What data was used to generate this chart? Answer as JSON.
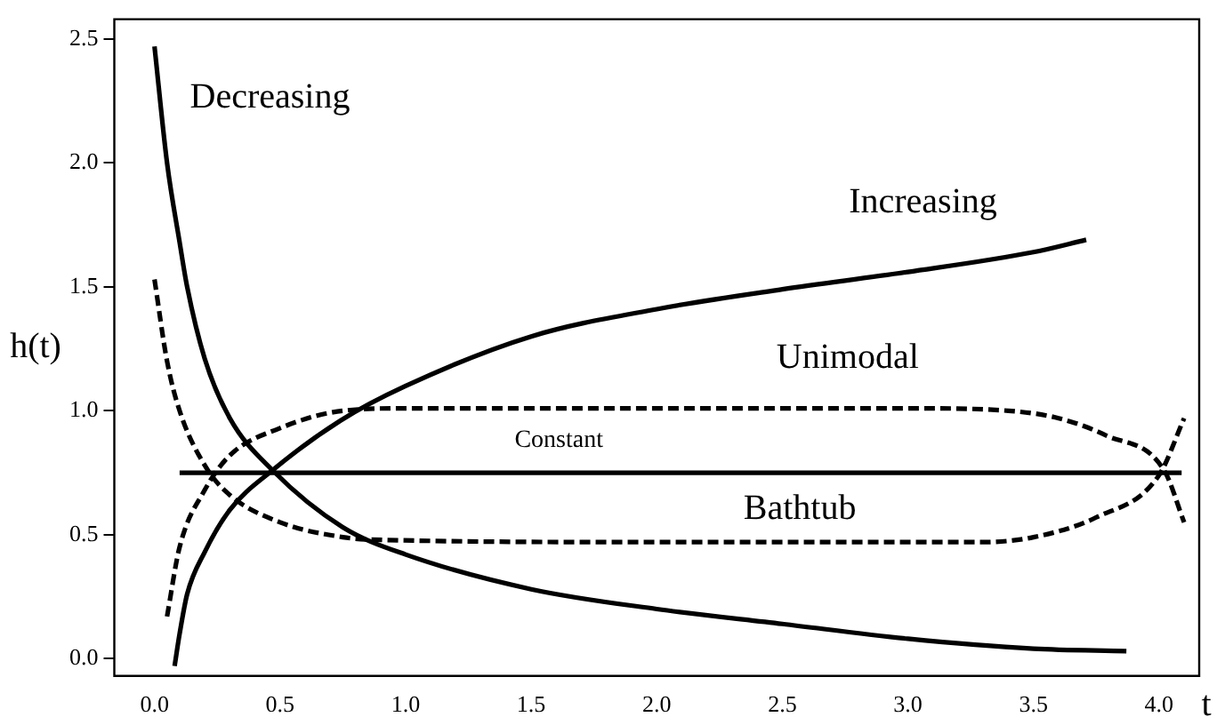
{
  "chart_data": {
    "type": "line",
    "xlabel": "t",
    "ylabel": "h(t)",
    "xlim": [
      -0.16,
      4.16
    ],
    "ylim": [
      -0.07,
      2.58
    ],
    "xticks": [
      {
        "value": 0,
        "label": "0.0"
      },
      0.5,
      {
        "value": 1,
        "label": "1.0"
      },
      1.5,
      {
        "value": 2,
        "label": "2.0"
      },
      2.5,
      {
        "value": 3,
        "label": "3.0"
      },
      3.5,
      {
        "value": 4,
        "label": "4.0"
      }
    ],
    "yticks": [
      {
        "value": 0,
        "label": "0.0"
      },
      0.5,
      {
        "value": 1,
        "label": "1.0"
      },
      1.5,
      {
        "value": 2,
        "label": "2.0"
      },
      2.5
    ],
    "grid": false,
    "legend": false,
    "marker": "none",
    "series": [
      {
        "name": "Decreasing",
        "color": "#000000",
        "line_style": "solid",
        "x": [
          0.0,
          0.05,
          0.1,
          0.13,
          0.2,
          0.3,
          0.47,
          0.75,
          1.0,
          1.5,
          2.0,
          2.5,
          3.0,
          3.5,
          3.87
        ],
        "values": [
          2.47,
          2.0,
          1.68,
          1.5,
          1.21,
          0.97,
          0.76,
          0.53,
          0.42,
          0.28,
          0.2,
          0.14,
          0.08,
          0.04,
          0.03
        ]
      },
      {
        "name": "Increasing",
        "color": "#000000",
        "line_style": "solid",
        "x": [
          0.08,
          0.1,
          0.13,
          0.2,
          0.3,
          0.47,
          0.74,
          1.0,
          1.5,
          2.0,
          2.5,
          3.0,
          3.5,
          3.71
        ],
        "values": [
          -0.03,
          0.1,
          0.26,
          0.43,
          0.6,
          0.76,
          0.96,
          1.1,
          1.3,
          1.41,
          1.49,
          1.56,
          1.64,
          1.69
        ]
      },
      {
        "name": "Unimodal",
        "color": "#000000",
        "line_style": "dashed",
        "x": [
          0.05,
          0.1,
          0.2,
          0.3,
          0.5,
          0.75,
          1.0,
          2.0,
          3.0,
          3.4,
          3.6,
          3.79,
          4.02,
          4.1
        ],
        "values": [
          0.17,
          0.45,
          0.68,
          0.82,
          0.93,
          1.0,
          1.01,
          1.01,
          1.01,
          1.0,
          0.97,
          0.9,
          0.76,
          0.55
        ]
      },
      {
        "name": "Constant",
        "color": "#000000",
        "line_style": "solid",
        "x": [
          0.1,
          4.09
        ],
        "values": [
          0.75,
          0.75
        ]
      },
      {
        "name": "Bathtub",
        "color": "#000000",
        "line_style": "dashed",
        "x": [
          0.0,
          0.05,
          0.1,
          0.2,
          0.3,
          0.5,
          0.75,
          0.87,
          2.0,
          3.3,
          3.5,
          3.75,
          4.0,
          4.1
        ],
        "values": [
          1.53,
          1.2,
          1.0,
          0.78,
          0.66,
          0.55,
          0.49,
          0.48,
          0.47,
          0.47,
          0.49,
          0.57,
          0.74,
          0.97
        ]
      }
    ]
  }
}
